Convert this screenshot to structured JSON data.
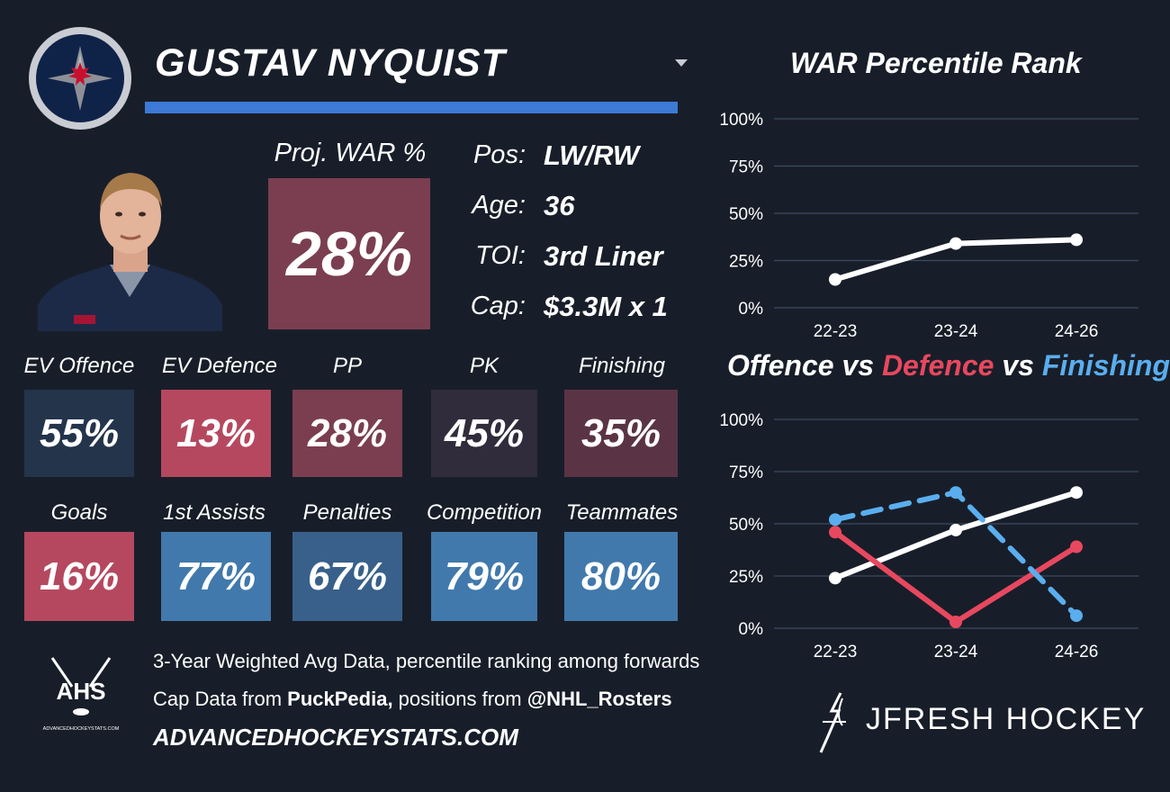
{
  "player": {
    "name": "GUSTAV NYQUIST",
    "proj_war_label": "Proj. WAR %",
    "proj_war_value": "28%"
  },
  "info": [
    {
      "key": "Pos:",
      "value": "LW/RW"
    },
    {
      "key": "Age:",
      "value": "36"
    },
    {
      "key": "TOI:",
      "value": "3rd Liner"
    },
    {
      "key": "Cap:",
      "value": "$3.3M x 1"
    }
  ],
  "tiles_row1": [
    {
      "label": "EV Offence",
      "value": "55%",
      "color": "#23344b"
    },
    {
      "label": "EV Defence",
      "value": "13%",
      "color": "#b5485f"
    },
    {
      "label": "PP",
      "value": "28%",
      "color": "#7a3e50"
    },
    {
      "label": "PK",
      "value": "45%",
      "color": "#302c3c"
    },
    {
      "label": "Finishing",
      "value": "35%",
      "color": "#5a3444"
    }
  ],
  "tiles_row2": [
    {
      "label": "Goals",
      "value": "16%",
      "color": "#b5485f"
    },
    {
      "label": "1st Assists",
      "value": "77%",
      "color": "#4179ac"
    },
    {
      "label": "Penalties",
      "value": "67%",
      "color": "#38608a"
    },
    {
      "label": "Competition",
      "value": "79%",
      "color": "#4179ac"
    },
    {
      "label": "Teammates",
      "value": "80%",
      "color": "#4179ac"
    }
  ],
  "footer": {
    "line1": "3-Year Weighted Avg Data, percentile ranking among forwards",
    "line2_prefix": "Cap Data from ",
    "line2_b1": "PuckPedia,",
    "line2_mid": " positions from ",
    "line2_b2": "@NHL_Rosters",
    "site": "ADVANCEDHOCKEYSTATS.COM",
    "ahs_logo_text": "AHS",
    "ahs_logo_small": "ADVANCEDHOCKEYSTATS.COM",
    "brand": "JFRESH HOCKEY"
  },
  "colors": {
    "offence": "#ffffff",
    "defence": "#e8485f",
    "finishing": "#5aaeee",
    "accent_bar": "#3c7ad6"
  },
  "chart_data": [
    {
      "type": "line",
      "title": "WAR Percentile Rank",
      "categories": [
        "22-23",
        "23-24",
        "24-26"
      ],
      "series": [
        {
          "values": [
            15,
            34,
            36
          ]
        }
      ],
      "ylim": [
        0,
        100
      ],
      "yticks": [
        "0%",
        "25%",
        "50%",
        "75%",
        "100%"
      ],
      "grid": true
    },
    {
      "type": "line",
      "title_parts": [
        "Offence",
        " vs ",
        "Defence",
        " vs ",
        "Finishing"
      ],
      "categories": [
        "22-23",
        "23-24",
        "24-26"
      ],
      "series": [
        {
          "name": "Offence",
          "values": [
            24,
            47,
            65
          ]
        },
        {
          "name": "Defence",
          "values": [
            46,
            3,
            39
          ]
        },
        {
          "name": "Finishing",
          "values": [
            52,
            65,
            6
          ]
        }
      ],
      "ylim": [
        0,
        100
      ],
      "yticks": [
        "0%",
        "25%",
        "50%",
        "75%",
        "100%"
      ],
      "grid": true
    }
  ]
}
